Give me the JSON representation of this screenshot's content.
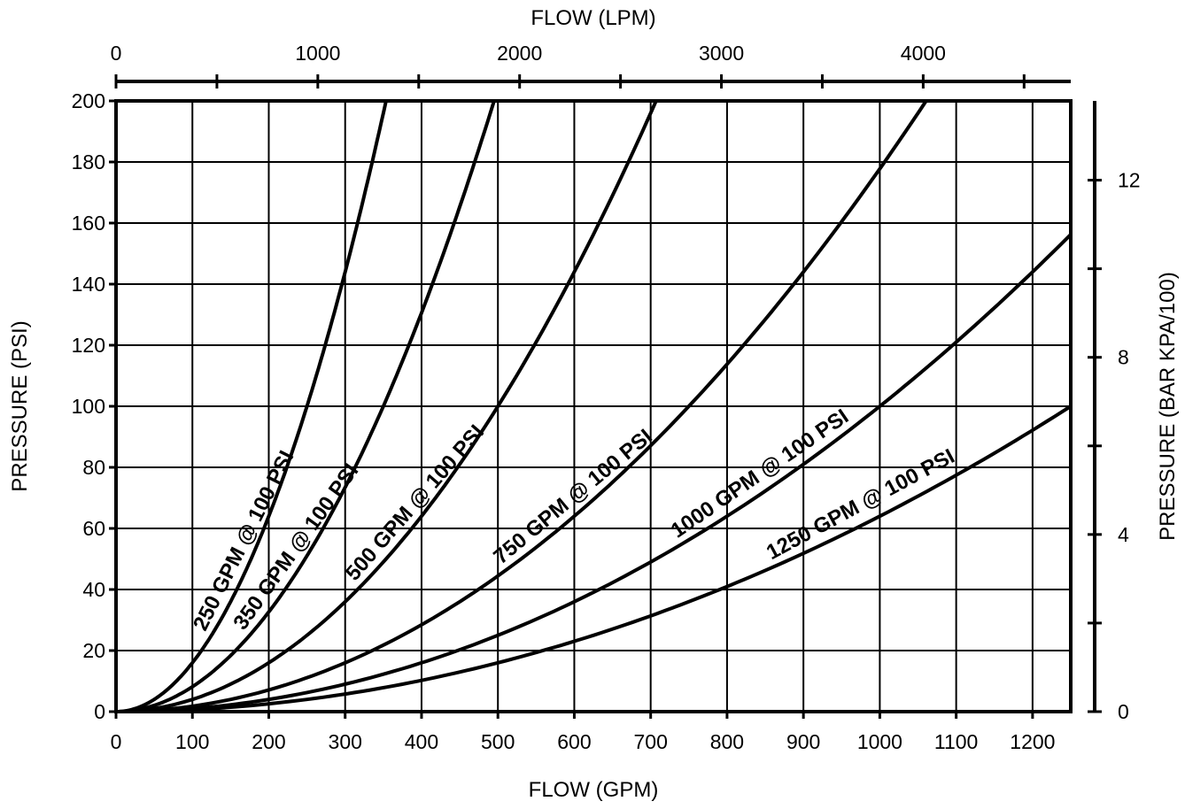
{
  "chart_data": {
    "type": "line",
    "x_axis": {
      "label": "FLOW (GPM)",
      "range": [
        0,
        1250
      ],
      "ticks": [
        "0",
        "100",
        "200",
        "300",
        "400",
        "500",
        "600",
        "700",
        "800",
        "900",
        "1000",
        "1100",
        "1200"
      ]
    },
    "y_axis": {
      "label": "PRESSURE (PSI)",
      "range": [
        0,
        200
      ],
      "ticks": [
        "0",
        "20",
        "40",
        "60",
        "80",
        "100",
        "120",
        "140",
        "160",
        "180",
        "200"
      ]
    },
    "top_axis": {
      "label": "FLOW (LPM)",
      "ticks": [
        "0",
        "1000",
        "2000",
        "3000",
        "4000"
      ]
    },
    "right_axis": {
      "label": "PRESSURE (BAR KPA/100)",
      "ticks": [
        "0",
        "4",
        "8",
        "12"
      ]
    },
    "grid": true,
    "series": [
      {
        "name": "250 GPM @ 100 PSI",
        "rated_gpm": 250,
        "rated_psi": 100
      },
      {
        "name": "350 GPM @ 100 PSI",
        "rated_gpm": 350,
        "rated_psi": 100
      },
      {
        "name": "500 GPM @ 100 PSI",
        "rated_gpm": 500,
        "rated_psi": 100
      },
      {
        "name": "750 GPM @ 100 PSI",
        "rated_gpm": 750,
        "rated_psi": 100
      },
      {
        "name": "1000 GPM @ 100 PSI",
        "rated_gpm": 1000,
        "rated_psi": 100
      },
      {
        "name": "1250 GPM @ 100 PSI",
        "rated_gpm": 1250,
        "rated_psi": 100
      }
    ]
  }
}
